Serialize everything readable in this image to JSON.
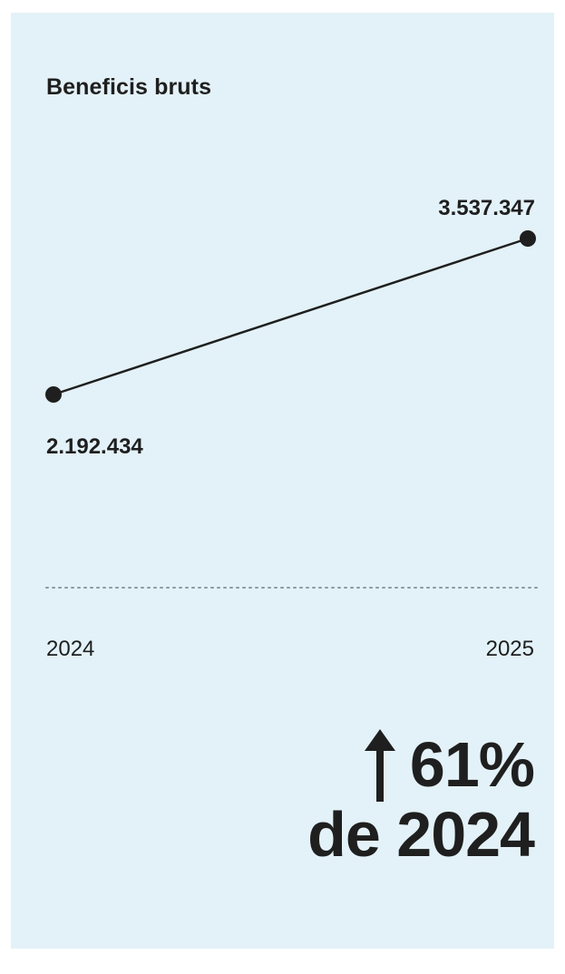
{
  "chart_data": {
    "type": "line",
    "title": "Beneficis bruts",
    "categories": [
      "2024",
      "2025"
    ],
    "series": [
      {
        "values": [
          2192434,
          3537347
        ],
        "value_labels": [
          "2.192.434",
          "3.537.347"
        ]
      }
    ],
    "grid": false,
    "baseline_style": "dotted"
  },
  "summary": {
    "change_value": "61%",
    "change_direction": "up",
    "change_reference": "de 2024",
    "arrow_icon": "arrow-up-icon"
  },
  "colors": {
    "background": "#e3f2f8",
    "ink": "#1f1f1f",
    "baseline": "#8a9aa3"
  }
}
